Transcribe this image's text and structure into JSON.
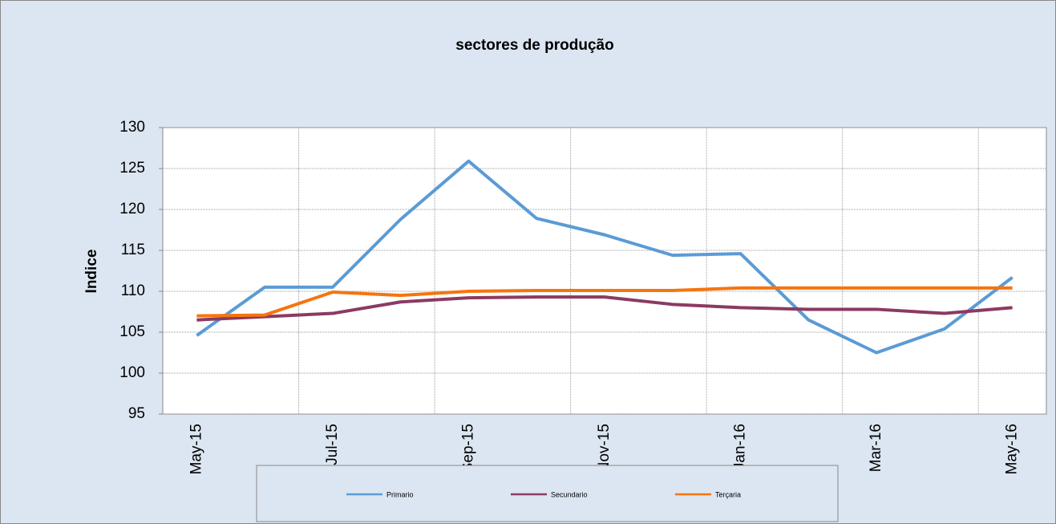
{
  "chart_data": {
    "type": "line",
    "title": "sectores de produção",
    "y_label": "Indice",
    "categories": [
      "May-15",
      null,
      "Jul-15",
      null,
      "Sep-15",
      null,
      "Nov-15",
      null,
      "Jan-16",
      null,
      "Mar-16",
      null,
      "May-16"
    ],
    "series": [
      {
        "name": "Primario",
        "color": "#5b9bd5",
        "values": [
          104.6,
          110.5,
          110.5,
          118.8,
          125.9,
          118.9,
          116.9,
          114.4,
          114.6,
          106.5,
          102.5,
          105.4,
          111.7
        ]
      },
      {
        "name": "Secundario",
        "color": "#8b3a62",
        "values": [
          106.5,
          106.9,
          107.3,
          108.7,
          109.2,
          109.3,
          109.3,
          108.4,
          108.0,
          107.8,
          107.8,
          107.3,
          108.0
        ]
      },
      {
        "name": "Terçaria",
        "color": "#f5750f",
        "values": [
          107.0,
          107.1,
          109.9,
          109.5,
          110.0,
          110.1,
          110.1,
          110.1,
          110.4,
          110.4,
          110.4,
          110.4,
          110.4
        ]
      }
    ],
    "ylim": [
      95,
      130
    ],
    "yticks": [
      95,
      100,
      105,
      110,
      115,
      120,
      125,
      130
    ],
    "grid": true
  }
}
